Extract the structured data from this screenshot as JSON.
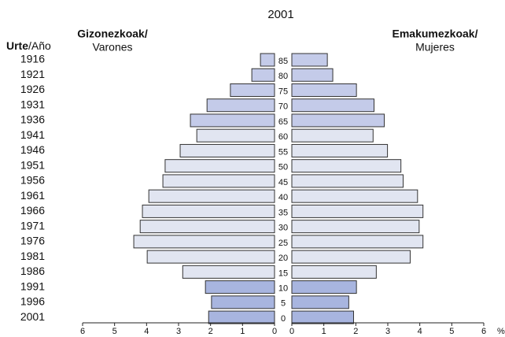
{
  "chart_data": {
    "type": "pyramid",
    "title": "2001",
    "category_title": {
      "bold": "Urte",
      "rest": "/Año"
    },
    "categories": [
      "1916",
      "1921",
      "1926",
      "1931",
      "1936",
      "1941",
      "1946",
      "1951",
      "1956",
      "1961",
      "1966",
      "1971",
      "1976",
      "1981",
      "1986",
      "1991",
      "1996",
      "2001"
    ],
    "age_labels": [
      85,
      80,
      75,
      70,
      65,
      60,
      55,
      50,
      45,
      40,
      35,
      30,
      25,
      20,
      15,
      10,
      5,
      0
    ],
    "colors": [
      "#c4cbe9",
      "#c4cbe9",
      "#c4cbe9",
      "#c4cbe9",
      "#c4cbe9",
      "#e1e5f1",
      "#e1e5f1",
      "#e1e5f1",
      "#e1e5f1",
      "#e1e5f1",
      "#e1e5f1",
      "#e1e5f1",
      "#e1e5f1",
      "#e1e5f1",
      "#e1e5f1",
      "#a8b5df",
      "#a8b5df",
      "#a8b5df"
    ],
    "series": [
      {
        "name": "Gizonezkoak/",
        "name2": "Varones",
        "side": "left",
        "values": [
          0.44,
          0.71,
          1.38,
          2.11,
          2.63,
          2.43,
          2.95,
          3.42,
          3.49,
          3.93,
          4.13,
          4.2,
          4.4,
          3.98,
          2.87,
          2.16,
          1.97,
          2.06
        ]
      },
      {
        "name": "Emakumezkoak/",
        "name2": "Mujeres",
        "side": "right",
        "values": [
          1.11,
          1.28,
          2.02,
          2.57,
          2.89,
          2.54,
          2.99,
          3.41,
          3.48,
          3.93,
          4.1,
          3.98,
          4.1,
          3.7,
          2.64,
          2.02,
          1.78,
          1.93
        ]
      }
    ],
    "xlim": [
      0,
      6
    ],
    "xticks": [
      0,
      1,
      2,
      3,
      4,
      5,
      6
    ],
    "x_unit": "%"
  }
}
